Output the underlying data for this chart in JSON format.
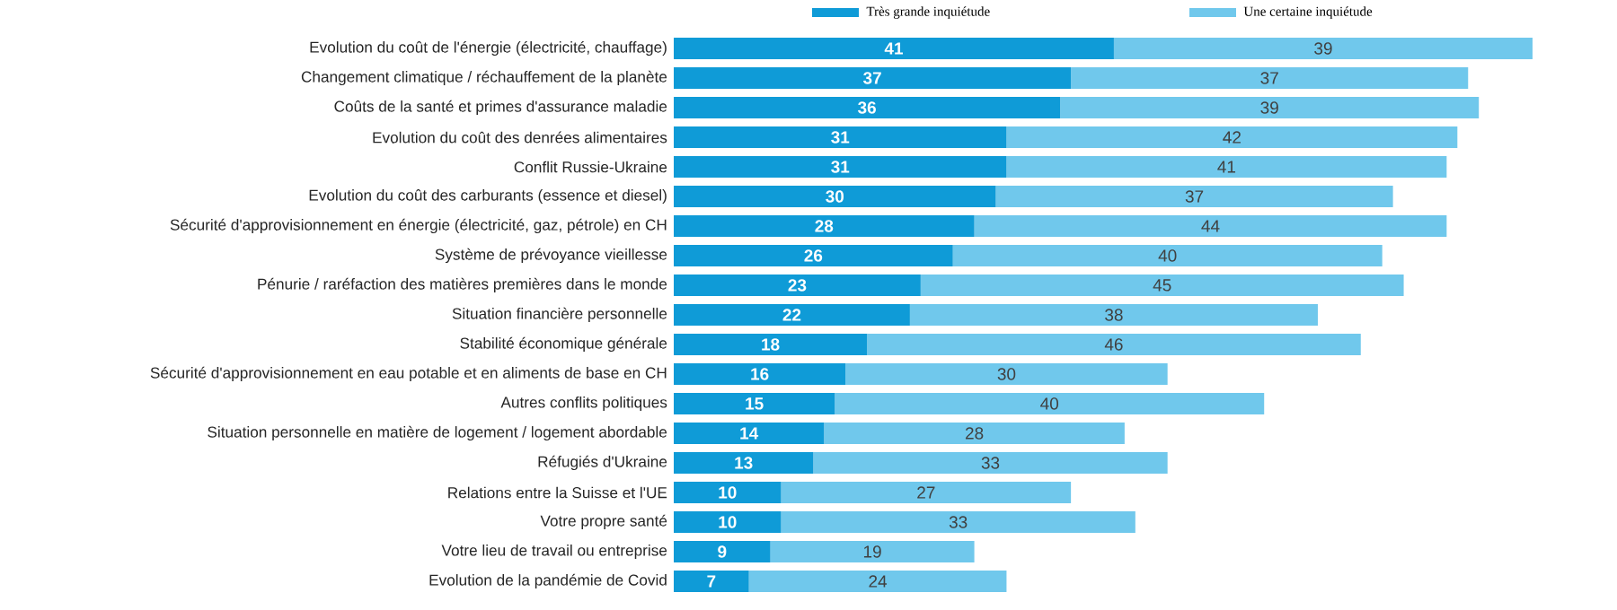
{
  "chart_data": {
    "type": "bar",
    "orientation": "horizontal",
    "stacked": true,
    "data_labels": true,
    "legend": "top",
    "tick_labels": "y",
    "categories": [
      "Evolution du coût de l'énergie (électricité, chauffage)",
      "Changement climatique / réchauffement de la planète",
      "Coûts de la santé et primes d'assurance maladie",
      "Evolution du coût des denrées alimentaires",
      "Conflit Russie-Ukraine",
      "Evolution du coût des carburants (essence et diesel)",
      "Sécurité d'approvisionnement en énergie (électricité, gaz, pétrole) en CH",
      "Système de prévoyance vieillesse",
      "Pénurie / raréfaction des matières premières dans le monde",
      "Situation financière personnelle",
      "Stabilité économique générale",
      "Sécurité d'approvisionnement en eau potable et en aliments de base en CH",
      "Autres conflits politiques",
      "Situation personnelle en matière de logement / logement abordable",
      "Réfugiés d'Ukraine",
      "Relations entre la Suisse et l'UE",
      "Votre propre santé",
      "Votre lieu de travail ou entreprise",
      "Evolution de la pandémie de Covid"
    ],
    "series": [
      {
        "name": "Très grande inquiétude",
        "color": "#0f9bd7",
        "values": [
          41,
          37,
          36,
          31,
          31,
          30,
          28,
          26,
          23,
          22,
          18,
          16,
          15,
          14,
          13,
          10,
          10,
          9,
          7
        ]
      },
      {
        "name": "Une certaine inquiétude",
        "color": "#70c8ec",
        "values": [
          39,
          37,
          39,
          42,
          41,
          37,
          44,
          40,
          45,
          38,
          46,
          30,
          40,
          28,
          33,
          27,
          33,
          19,
          24
        ]
      }
    ]
  }
}
